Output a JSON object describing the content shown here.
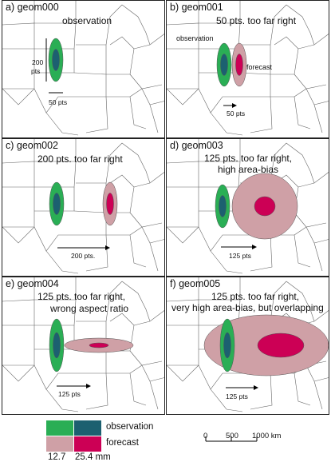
{
  "colors": {
    "obs_outer": "#2aae55",
    "obs_inner": "#1c6070",
    "fc_outer": "#cfa0a6",
    "fc_inner": "#cc0055",
    "map_lines": "#666666"
  },
  "panels": [
    {
      "title": "a) geom000",
      "desc": [
        "observation"
      ],
      "obs_x": "",
      "scale_label": "50 pts",
      "height_label": [
        "200",
        "pts"
      ],
      "obs_label": "",
      "fc_label": ""
    },
    {
      "title": "b) geom001",
      "desc": [
        "50 pts. too far right"
      ],
      "scale_label": "50 pts",
      "obs_label": "observation",
      "fc_label": "forecast"
    },
    {
      "title": "c) geom002",
      "desc": [
        "200 pts. too far right"
      ],
      "scale_label": "200 pts."
    },
    {
      "title": "d) geom003",
      "desc": [
        "125 pts. too far right,",
        "high area-bias"
      ],
      "scale_label": "125 pts"
    },
    {
      "title": "e) geom004",
      "desc": [
        "125 pts. too far right,",
        "wrong aspect ratio"
      ],
      "scale_label": "125 pts"
    },
    {
      "title": "f) geom005",
      "desc": [
        "125 pts. too far right,",
        "very high area-bias, but overlapping"
      ],
      "scale_label": "125 pts"
    }
  ],
  "legend": {
    "observation": "observation",
    "forecast": "forecast",
    "thresh_low": "12.7",
    "thresh_high": "25.4 mm",
    "scale_ticks": [
      "0",
      "500",
      "1000 km"
    ]
  }
}
